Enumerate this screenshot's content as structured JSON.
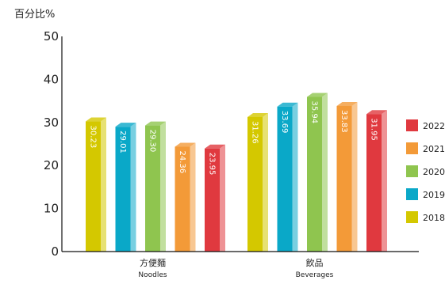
{
  "chart_data": {
    "type": "bar",
    "unit_label": "百分比%",
    "ylim": [
      0,
      50
    ],
    "yticks": [
      "0",
      "10",
      "20",
      "30",
      "40",
      "50"
    ],
    "categories": [
      {
        "zh": "方便麵",
        "en": "Noodles"
      },
      {
        "zh": "飲品",
        "en": "Beverages"
      }
    ],
    "series": [
      {
        "name": "2018",
        "color": "#d4c800",
        "values": [
          30.23,
          31.26
        ],
        "labels": [
          "30.23",
          "31.26"
        ]
      },
      {
        "name": "2019",
        "color": "#0aa8c8",
        "values": [
          29.01,
          33.69
        ],
        "labels": [
          "29.01",
          "33.69"
        ]
      },
      {
        "name": "2020",
        "color": "#8fc54f",
        "values": [
          29.3,
          35.94
        ],
        "labels": [
          "29.30",
          "35.94"
        ]
      },
      {
        "name": "2021",
        "color": "#f39a38",
        "values": [
          24.36,
          33.83
        ],
        "labels": [
          "24.36",
          "33.83"
        ]
      },
      {
        "name": "2022",
        "color": "#e0393f",
        "values": [
          23.95,
          31.95
        ],
        "labels": [
          "23.95",
          "31.95"
        ]
      }
    ],
    "legend_position": "right",
    "grid": false
  }
}
